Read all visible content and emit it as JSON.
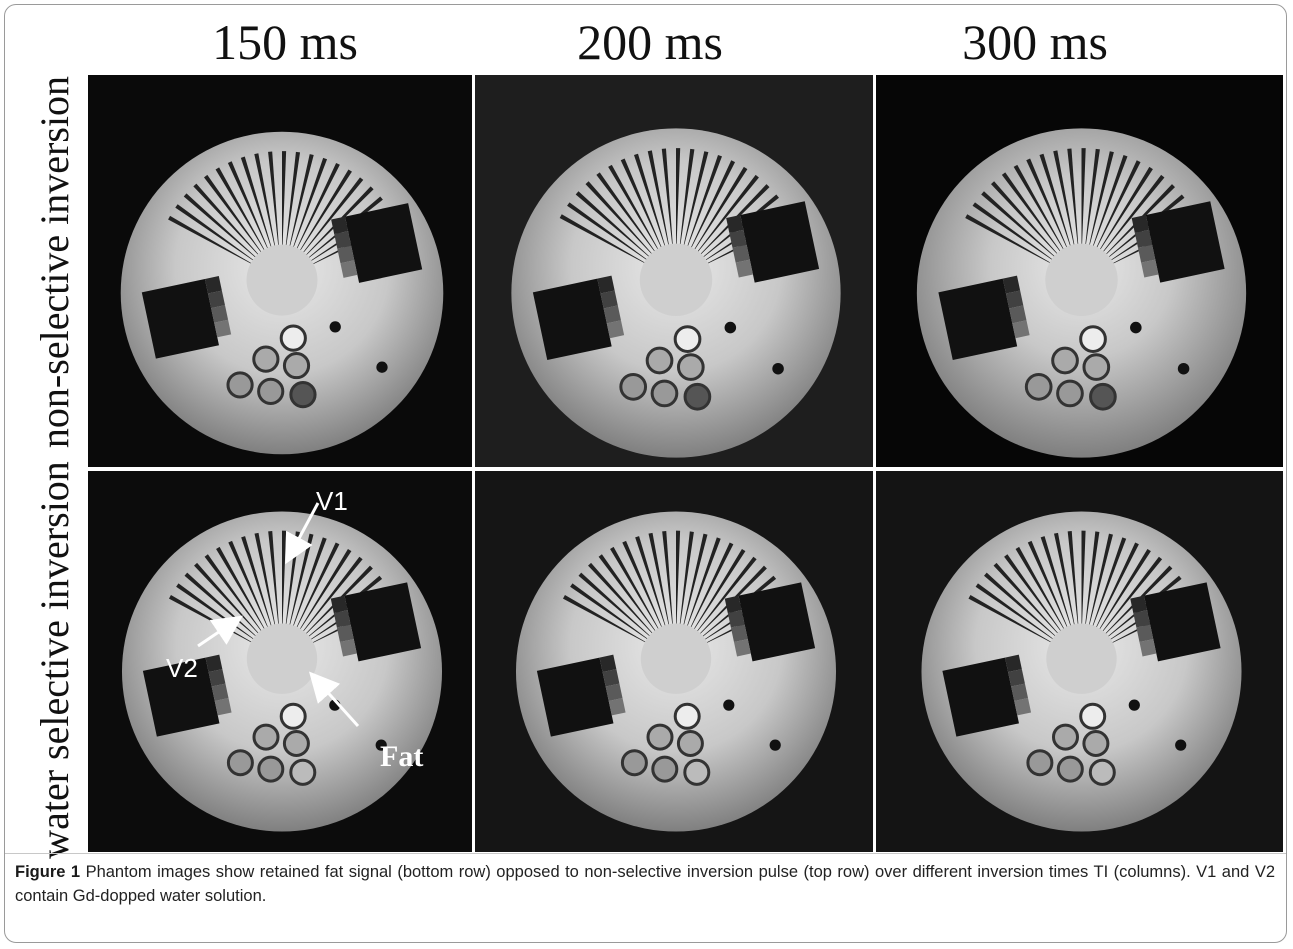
{
  "figure": {
    "columns": [
      "150 ms",
      "200 ms",
      "300 ms"
    ],
    "rows": [
      "non-selective inversion",
      "water selective inversion"
    ],
    "annotations": {
      "v1": "V1",
      "v2": "V2",
      "fat": "Fat"
    },
    "caption_label": "Figure 1",
    "caption_text": " Phantom images show retained fat signal (bottom row) opposed to non-selective inversion pulse (top row) over different inversion times TI (columns). V1 and V2 contain Gd-dopped water solution."
  },
  "colors": {
    "panel_bg_dark": "#0b0b0b",
    "panel_bg_mid": "#1c1c1c",
    "phantom_light": "#d9d9d9",
    "phantom_shadow": "#6a6a6a"
  }
}
